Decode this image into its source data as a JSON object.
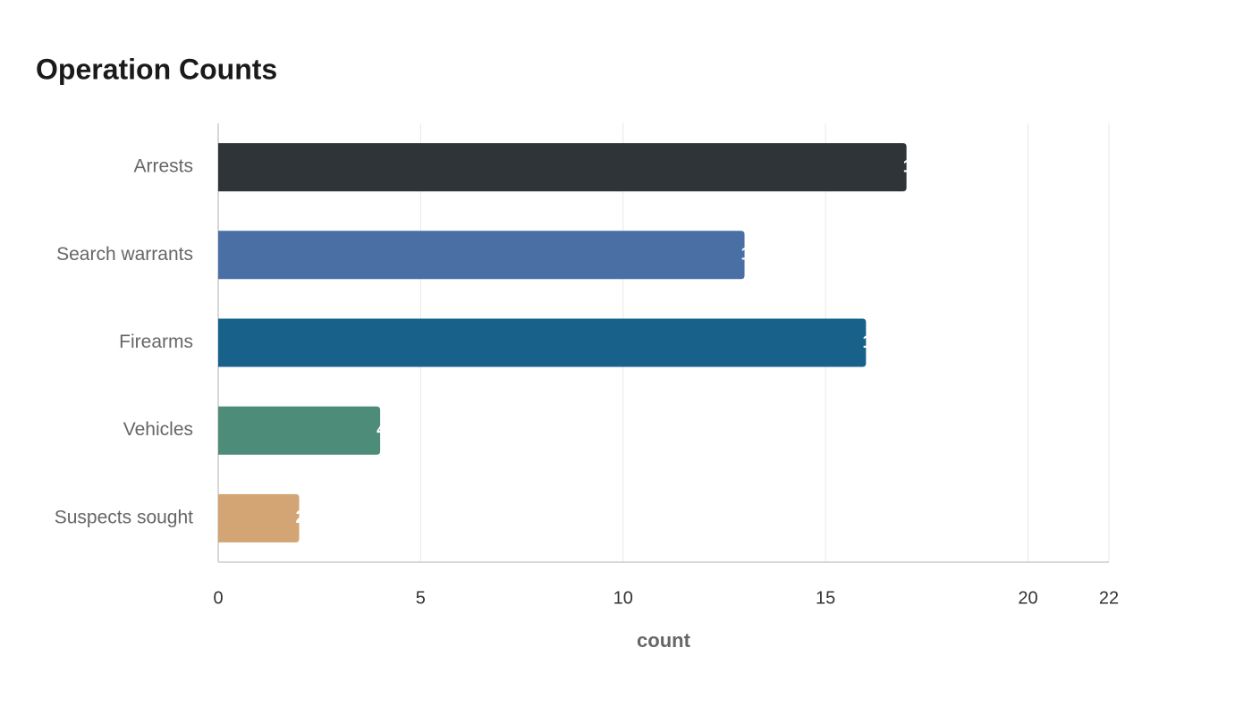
{
  "chart_data": {
    "type": "bar",
    "orientation": "horizontal",
    "title": "Operation Counts",
    "categories": [
      "Arrests",
      "Search warrants",
      "Firearms",
      "Vehicles",
      "Suspects sought"
    ],
    "values": [
      17,
      13,
      16,
      4,
      2
    ],
    "colors": [
      "#2e3437",
      "#4a6fa5",
      "#18618a",
      "#4e8c7a",
      "#d4a574"
    ],
    "xlabel": "count",
    "xlim": [
      0,
      22
    ],
    "xticks": [
      0,
      5,
      10,
      15,
      20,
      22
    ],
    "grid": true
  }
}
